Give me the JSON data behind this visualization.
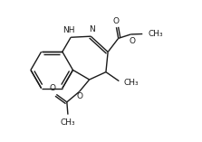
{
  "bg_color": "#ffffff",
  "line_color": "#1a1a1a",
  "line_width": 1.0,
  "font_size": 6.5,
  "fig_width": 2.23,
  "fig_height": 1.57,
  "dpi": 100,
  "xlim": [
    0,
    10
  ],
  "ylim": [
    0,
    7
  ]
}
